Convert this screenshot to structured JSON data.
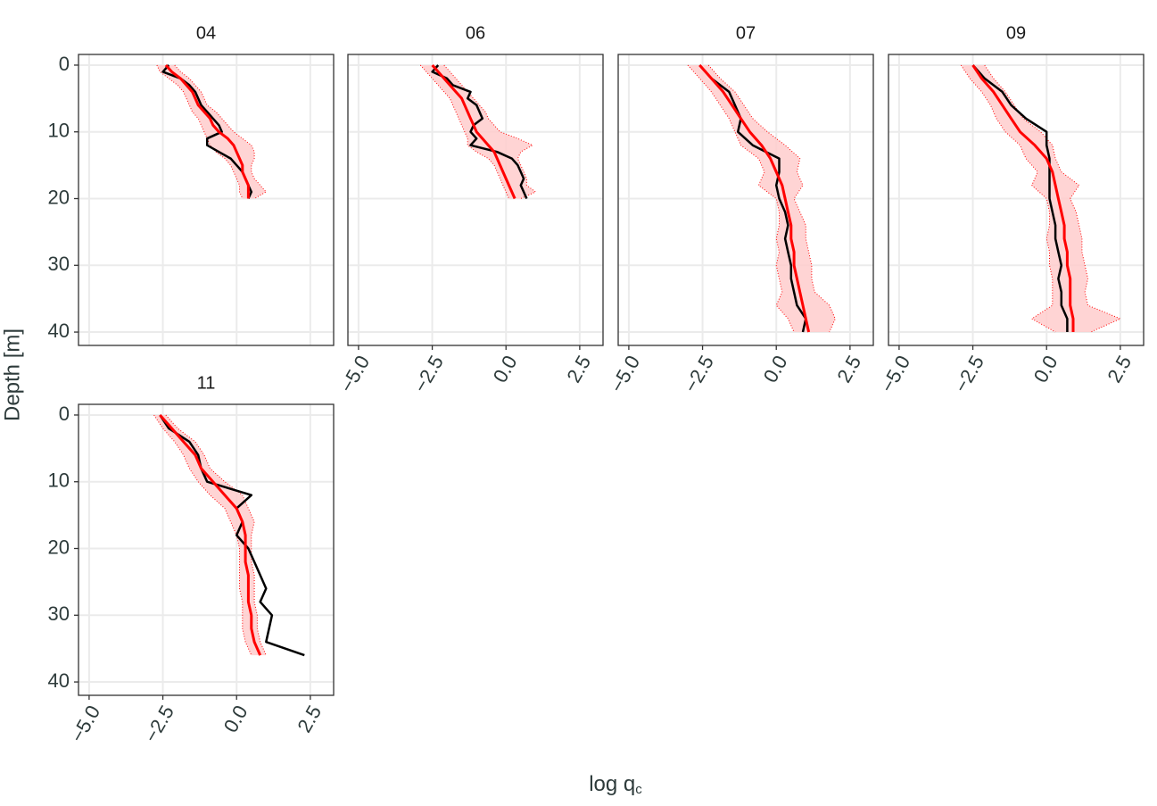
{
  "chart_data": {
    "type": "facet-profile",
    "x_label": "log q",
    "x_label_subscript": "c",
    "y_label": "Depth [m]",
    "xlim": [
      -5.36,
      3.29
    ],
    "xticks": [
      {
        "value": -5,
        "label": "−5.0"
      },
      {
        "value": -2.5,
        "label": "−2.5"
      },
      {
        "value": 0,
        "label": "0.0"
      },
      {
        "value": 2.5,
        "label": "2.5"
      }
    ],
    "ylim": [
      -1.6,
      42
    ],
    "y_reversed": true,
    "yticks": [
      0,
      10,
      20,
      30,
      40
    ],
    "grid": true,
    "measured_color": "#000000",
    "mean_color": "#ff0000",
    "band_color": "#ffcccc",
    "panels": [
      {
        "title": "04",
        "depth": [
          0,
          1,
          2,
          3,
          4,
          5,
          6,
          7,
          8,
          9,
          10,
          11,
          12,
          13,
          14,
          15,
          16,
          17,
          18,
          19,
          20
        ],
        "measured": [
          -2.3,
          -2.5,
          -1.9,
          -1.6,
          -1.4,
          -1.3,
          -1.2,
          -1.0,
          -0.8,
          -0.6,
          -0.5,
          -1.0,
          -1.0,
          -0.6,
          -0.2,
          0.0,
          0.2,
          0.3,
          0.4,
          0.5,
          0.4
        ],
        "mean": [
          -2.4,
          -2.2,
          -1.9,
          -1.7,
          -1.5,
          -1.4,
          -1.3,
          -1.1,
          -0.9,
          -0.8,
          -0.6,
          -0.3,
          -0.1,
          0.0,
          0.1,
          0.2,
          0.2,
          0.3,
          0.4,
          0.4,
          0.4
        ],
        "lower": [
          -2.7,
          -2.6,
          -2.3,
          -2.0,
          -1.8,
          -1.7,
          -1.6,
          -1.5,
          -1.3,
          -1.2,
          -1.1,
          -1.0,
          -0.9,
          -0.7,
          -0.4,
          -0.2,
          -0.1,
          0.0,
          0.1,
          0.1,
          0.2
        ],
        "upper": [
          -2.1,
          -1.9,
          -1.6,
          -1.4,
          -1.2,
          -1.1,
          -1.0,
          -0.7,
          -0.5,
          -0.3,
          -0.1,
          0.2,
          0.5,
          0.6,
          0.6,
          0.5,
          0.5,
          0.6,
          0.8,
          1.0,
          0.6
        ]
      },
      {
        "title": "06",
        "depth": [
          0,
          1,
          2,
          3,
          4,
          5,
          6,
          7,
          8,
          9,
          10,
          11,
          12,
          13,
          14,
          15,
          16,
          17,
          18,
          19,
          20
        ],
        "measured": [
          -2.3,
          -2.5,
          -2.0,
          -1.8,
          -1.2,
          -1.3,
          -1.0,
          -0.9,
          -0.8,
          -1.1,
          -1.2,
          -1.0,
          -1.2,
          -0.3,
          0.2,
          0.4,
          0.5,
          0.6,
          0.5,
          0.6,
          0.7
        ],
        "mean": [
          -2.5,
          -2.3,
          -2.1,
          -1.9,
          -1.7,
          -1.5,
          -1.4,
          -1.3,
          -1.2,
          -1.1,
          -1.0,
          -0.8,
          -0.6,
          -0.4,
          -0.3,
          -0.2,
          -0.1,
          0.0,
          0.1,
          0.2,
          0.3
        ],
        "lower": [
          -2.9,
          -2.7,
          -2.5,
          -2.3,
          -2.1,
          -1.9,
          -1.8,
          -1.7,
          -1.6,
          -1.5,
          -1.4,
          -1.3,
          -1.3,
          -1.0,
          -0.6,
          -0.4,
          -0.3,
          -0.2,
          -0.1,
          0.0,
          0.1
        ],
        "upper": [
          -2.1,
          -1.9,
          -1.7,
          -1.5,
          -1.3,
          -1.1,
          -0.9,
          -0.7,
          -0.6,
          -0.4,
          -0.2,
          0.4,
          0.9,
          0.5,
          0.4,
          0.5,
          0.6,
          0.7,
          0.7,
          1.0,
          0.5
        ]
      },
      {
        "title": "07",
        "depth": [
          0,
          2,
          4,
          6,
          8,
          10,
          12,
          14,
          16,
          18,
          20,
          22,
          24,
          26,
          28,
          30,
          32,
          34,
          36,
          38,
          40
        ],
        "measured": [
          -2.6,
          -2.2,
          -1.6,
          -1.4,
          -1.2,
          -1.3,
          -0.8,
          0.1,
          0.1,
          0.0,
          0.1,
          0.3,
          0.4,
          0.3,
          0.4,
          0.5,
          0.5,
          0.6,
          0.7,
          1.0,
          0.9
        ],
        "mean": [
          -2.6,
          -2.2,
          -1.8,
          -1.5,
          -1.2,
          -0.9,
          -0.5,
          -0.2,
          0.0,
          0.2,
          0.3,
          0.4,
          0.5,
          0.5,
          0.6,
          0.6,
          0.7,
          0.8,
          0.9,
          1.0,
          1.1
        ],
        "lower": [
          -3.0,
          -2.6,
          -2.2,
          -1.9,
          -1.6,
          -1.4,
          -1.2,
          -0.6,
          -0.4,
          -0.6,
          0.0,
          0.1,
          0.1,
          0.0,
          0.1,
          0.0,
          0.1,
          0.2,
          0.0,
          0.4,
          0.6
        ],
        "upper": [
          -2.3,
          -1.9,
          -1.4,
          -1.1,
          -0.8,
          -0.3,
          0.3,
          0.8,
          0.7,
          0.9,
          0.6,
          0.8,
          1.0,
          1.0,
          1.1,
          1.2,
          1.2,
          1.3,
          1.8,
          2.0,
          1.8
        ]
      },
      {
        "title": "09",
        "depth": [
          0,
          2,
          4,
          6,
          8,
          10,
          12,
          14,
          16,
          18,
          20,
          22,
          24,
          26,
          28,
          30,
          32,
          34,
          36,
          38,
          40
        ],
        "measured": [
          -2.5,
          -2.1,
          -1.5,
          -1.2,
          -0.7,
          0.0,
          0.0,
          0.1,
          0.1,
          0.1,
          0.1,
          0.2,
          0.3,
          0.3,
          0.4,
          0.5,
          0.4,
          0.5,
          0.5,
          0.7,
          0.7
        ],
        "mean": [
          -2.5,
          -2.2,
          -1.8,
          -1.5,
          -1.2,
          -0.9,
          -0.4,
          0.0,
          0.2,
          0.3,
          0.4,
          0.5,
          0.6,
          0.6,
          0.7,
          0.7,
          0.8,
          0.8,
          0.8,
          0.9,
          0.9
        ],
        "lower": [
          -2.9,
          -2.6,
          -2.2,
          -1.9,
          -1.7,
          -1.4,
          -0.9,
          -0.7,
          -0.3,
          -0.5,
          0.0,
          0.1,
          0.1,
          0.0,
          0.1,
          0.1,
          0.2,
          0.2,
          0.2,
          -0.5,
          0.3
        ],
        "upper": [
          -2.1,
          -1.8,
          -1.4,
          -1.1,
          -0.8,
          -0.2,
          0.2,
          0.3,
          0.5,
          1.1,
          0.8,
          1.0,
          1.1,
          1.2,
          1.2,
          1.3,
          1.4,
          1.3,
          1.4,
          2.5,
          1.5
        ]
      },
      {
        "title": "11",
        "depth": [
          0,
          2,
          4,
          6,
          8,
          10,
          12,
          14,
          16,
          18,
          20,
          22,
          24,
          26,
          28,
          30,
          32,
          34,
          36
        ],
        "measured": [
          -2.6,
          -2.3,
          -1.6,
          -1.3,
          -1.2,
          -1.0,
          0.5,
          0.0,
          0.2,
          0.0,
          0.4,
          0.6,
          0.8,
          1.0,
          0.8,
          1.2,
          1.1,
          1.0,
          2.3
        ],
        "mean": [
          -2.6,
          -2.2,
          -1.8,
          -1.4,
          -1.2,
          -0.8,
          -0.4,
          0.0,
          0.2,
          0.3,
          0.3,
          0.3,
          0.4,
          0.4,
          0.4,
          0.5,
          0.5,
          0.6,
          0.8
        ],
        "lower": [
          -2.8,
          -2.5,
          -2.1,
          -1.8,
          -1.6,
          -1.3,
          -0.9,
          -0.4,
          -0.2,
          0.0,
          0.1,
          0.1,
          0.1,
          0.1,
          0.2,
          0.2,
          0.2,
          0.3,
          0.5
        ],
        "upper": [
          -2.4,
          -2.0,
          -1.4,
          -1.1,
          -0.9,
          -0.4,
          0.2,
          0.4,
          0.6,
          0.5,
          0.5,
          0.5,
          0.6,
          0.6,
          0.6,
          0.7,
          0.7,
          0.8,
          1.0
        ]
      }
    ]
  }
}
